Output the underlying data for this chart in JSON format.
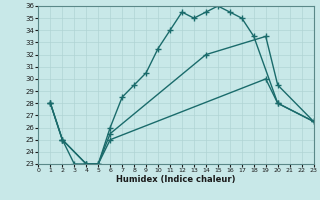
{
  "xlabel": "Humidex (Indice chaleur)",
  "bg_color": "#c8e8e8",
  "line_color": "#1a6b6b",
  "grid_color": "#b0d4d4",
  "xlim": [
    0,
    23
  ],
  "ylim": [
    23,
    36
  ],
  "xticks": [
    0,
    1,
    2,
    3,
    4,
    5,
    6,
    7,
    8,
    9,
    10,
    11,
    12,
    13,
    14,
    15,
    16,
    17,
    18,
    19,
    20,
    21,
    22,
    23
  ],
  "yticks": [
    23,
    24,
    25,
    26,
    27,
    28,
    29,
    30,
    31,
    32,
    33,
    34,
    35,
    36
  ],
  "line1_x": [
    1,
    2,
    3,
    4,
    5,
    6,
    7,
    8,
    9,
    10,
    11,
    12,
    13,
    14,
    15,
    16,
    17,
    18,
    20,
    23
  ],
  "line1_y": [
    28,
    25,
    23,
    23,
    23,
    26,
    28.5,
    29.5,
    30.5,
    32.5,
    34,
    35.5,
    35.0,
    35.5,
    36,
    35.5,
    35,
    33.5,
    28,
    26.5
  ],
  "line2_x": [
    1,
    2,
    4,
    5,
    6,
    14,
    19,
    20,
    23
  ],
  "line2_y": [
    28,
    25,
    23,
    23,
    25.5,
    32.0,
    33.5,
    29.5,
    26.5
  ],
  "line3_x": [
    1,
    2,
    4,
    5,
    6,
    19,
    20,
    23
  ],
  "line3_y": [
    28,
    25,
    23,
    23,
    25.0,
    30.0,
    28.0,
    26.5
  ],
  "marker": "+",
  "markersize": 4,
  "linewidth": 1.0
}
